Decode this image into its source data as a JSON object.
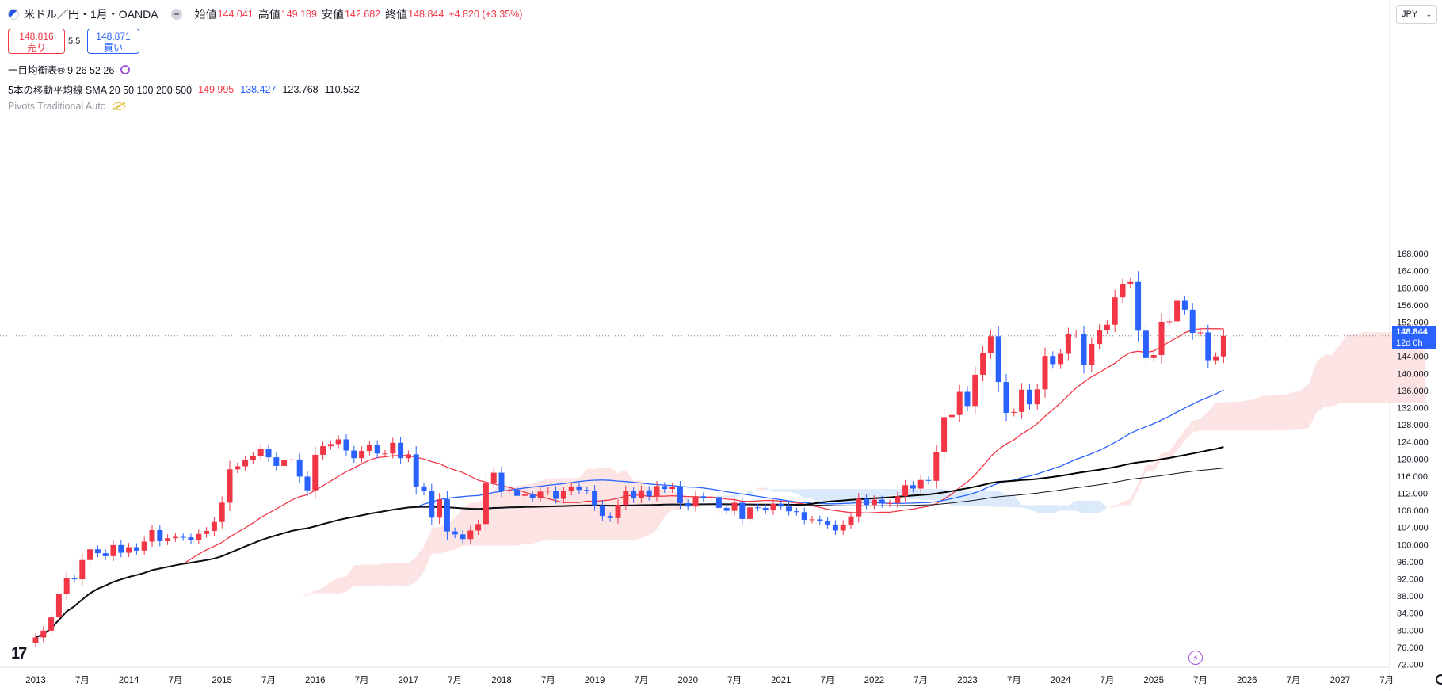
{
  "header": {
    "symbol": "米ドル／円・1月・OANDA",
    "open_label": "始値",
    "open": "144.041",
    "high_label": "高値",
    "high": "149.189",
    "low_label": "安値",
    "low": "142.682",
    "close_label": "終値",
    "close": "148.844",
    "change": "+4.820 (+3.35%)"
  },
  "trade": {
    "sell_price": "148.816",
    "sell_label": "売り",
    "spread": "5.5",
    "buy_price": "148.871",
    "buy_label": "買い"
  },
  "indicators": {
    "ichimoku": "一目均衡表® 9 26 52 26",
    "sma_label": "5本の移動平均線 SMA 20 50 100 200 500",
    "sma_values": [
      {
        "value": "149.995",
        "color": "#f23645"
      },
      {
        "value": "138.427",
        "color": "#2962ff"
      },
      {
        "value": "123.768",
        "color": "#131722"
      },
      {
        "value": "110.532",
        "color": "#131722"
      }
    ],
    "pivots": "Pivots Traditional Auto"
  },
  "currency": "JPY",
  "last_price": {
    "value": "148.844",
    "countdown": "12d 0h"
  },
  "icons": [
    "flag-icon",
    "sync-icon",
    "eye-off-icon",
    "chevron-down-icon",
    "tradingview-logo-icon",
    "bolt-icon",
    "gear-icon"
  ],
  "colors": {
    "up": "#f23645",
    "down": "#2962ff",
    "ma20": "#f23645",
    "ma50": "#2962ff",
    "ma100": "#000000",
    "ma200": "#131722",
    "cloud_bull": "#fde4e4",
    "cloud_bear": "#dbeafb"
  },
  "chart_data": {
    "type": "candlestick",
    "interval": "1M",
    "ylim": [
      70,
      168
    ],
    "y_ticks": [
      "72.000",
      "76.000",
      "80.000",
      "84.000",
      "88.000",
      "92.000",
      "96.000",
      "100.000",
      "104.000",
      "108.000",
      "112.000",
      "116.000",
      "120.000",
      "124.000",
      "128.000",
      "132.000",
      "136.000",
      "140.000",
      "144.000",
      "148.000",
      "152.000",
      "156.000",
      "160.000",
      "164.000",
      "168.000"
    ],
    "x_ticks": [
      "2013",
      "7月",
      "2014",
      "7月",
      "2015",
      "7月",
      "2016",
      "7月",
      "2017",
      "7月",
      "2018",
      "7月",
      "2019",
      "7月",
      "2020",
      "7月",
      "2021",
      "7月",
      "2022",
      "7月",
      "2023",
      "7月",
      "2024",
      "7月",
      "2025",
      "7月",
      "2026",
      "7月",
      "2027",
      "7月"
    ],
    "x_tick_months": [
      0,
      6,
      12,
      18,
      24,
      30,
      36,
      42,
      48,
      54,
      60,
      66,
      72,
      78,
      84,
      90,
      96,
      102,
      108,
      114,
      120,
      126,
      132,
      138,
      144,
      150,
      156,
      162,
      168,
      174
    ],
    "start": "2013-01",
    "closes": [
      78.3,
      79.9,
      83.0,
      88.5,
      92.2,
      91.9,
      96.4,
      98.9,
      98.0,
      97.3,
      99.9,
      98.1,
      99.4,
      98.6,
      100.7,
      103.4,
      100.8,
      101.5,
      101.8,
      101.7,
      101.1,
      102.5,
      103.2,
      105.3,
      109.8,
      117.6,
      118.3,
      119.8,
      120.7,
      122.3,
      120.4,
      118.4,
      119.8,
      119.9,
      115.9,
      112.7,
      121.0,
      123.0,
      123.5,
      124.6,
      122.0,
      120.2,
      121.9,
      123.3,
      121.3,
      121.3,
      123.8,
      120.2,
      121.1,
      113.6,
      112.5,
      106.3,
      110.6,
      103.1,
      102.4,
      101.3,
      103.3,
      104.8,
      114.3,
      116.8,
      112.6,
      112.8,
      111.4,
      111.7,
      110.9,
      112.4,
      112.6,
      110.7,
      112.5,
      113.6,
      112.8,
      112.6,
      109.2,
      106.7,
      106.2,
      109.3,
      112.5,
      110.8,
      112.7,
      111.3,
      113.7,
      113.0,
      113.5,
      109.7,
      108.9,
      111.3,
      110.9,
      111.1,
      108.6,
      107.9,
      109.8,
      106.0,
      108.7,
      108.6,
      108.0,
      109.5,
      108.9,
      107.8,
      107.6,
      105.8,
      105.9,
      105.5,
      104.7,
      103.3,
      104.7,
      106.6,
      110.7,
      109.3,
      110.5,
      109.6,
      109.7,
      111.3,
      113.9,
      113.1,
      115.1,
      114.9,
      121.6,
      129.8,
      130.3,
      135.7,
      132.4,
      139.7,
      144.8,
      148.7,
      138.0,
      130.8,
      131.0,
      136.2,
      132.8,
      136.3,
      144.1,
      142.2,
      144.6,
      149.2,
      149.3,
      141.9,
      146.9,
      150.2,
      151.4,
      157.8,
      160.9,
      161.4,
      150.0,
      143.6,
      144.3,
      152.1,
      152.2,
      157.0,
      154.9,
      149.5,
      149.6,
      143.1,
      144.0,
      148.8
    ]
  }
}
